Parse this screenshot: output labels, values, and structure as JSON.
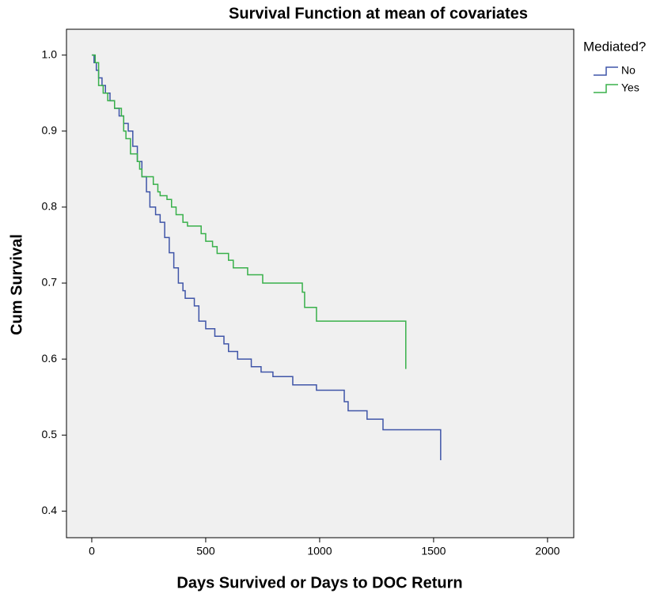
{
  "chart_data": {
    "type": "step",
    "title": "Survival Function at mean of covariates",
    "x_label": "Days Survived or Days to DOC Return",
    "y_label": "Cum Survival",
    "legend_title": "Mediated?",
    "legend_position": "right",
    "xlim": [
      -111,
      2115
    ],
    "xticks": [
      0,
      500,
      1000,
      1500,
      2000
    ],
    "ylim": [
      0.365,
      1.034
    ],
    "yticks": [
      0.4,
      0.5,
      0.6,
      0.7,
      0.8,
      0.9,
      {
        "value": 1,
        "label": "1.0"
      }
    ],
    "series": [
      {
        "name": "No",
        "color": "#3f55a8",
        "x": [
          0,
          10,
          20,
          30,
          45,
          60,
          80,
          100,
          120,
          140,
          160,
          180,
          200,
          220,
          240,
          255,
          280,
          300,
          320,
          340,
          360,
          380,
          400,
          410,
          450,
          470,
          500,
          540,
          580,
          600,
          640,
          700,
          743,
          795,
          882,
          986,
          1108,
          1125,
          1208,
          1278,
          1531
        ],
        "values": [
          1,
          0.99,
          0.98,
          0.97,
          0.96,
          0.95,
          0.94,
          0.93,
          0.92,
          0.91,
          0.9,
          0.88,
          0.86,
          0.84,
          0.82,
          0.8,
          0.79,
          0.78,
          0.76,
          0.74,
          0.72,
          0.7,
          0.69,
          0.68,
          0.67,
          0.65,
          0.64,
          0.63,
          0.62,
          0.61,
          0.6,
          0.59,
          0.583,
          0.577,
          0.566,
          0.559,
          0.544,
          0.532,
          0.521,
          0.507,
          0.467
        ]
      },
      {
        "name": "Yes",
        "color": "#38b04a",
        "x": [
          0,
          15,
          30,
          50,
          70,
          100,
          130,
          140,
          150,
          170,
          200,
          210,
          220,
          270,
          290,
          300,
          330,
          350,
          370,
          400,
          420,
          480,
          500,
          530,
          550,
          600,
          621,
          684,
          750,
          924,
          934,
          986,
          1378
        ],
        "values": [
          1,
          0.99,
          0.96,
          0.95,
          0.94,
          0.93,
          0.92,
          0.9,
          0.89,
          0.87,
          0.86,
          0.85,
          0.84,
          0.83,
          0.82,
          0.815,
          0.81,
          0.8,
          0.79,
          0.78,
          0.775,
          0.765,
          0.755,
          0.748,
          0.739,
          0.73,
          0.72,
          0.711,
          0.7,
          0.688,
          0.668,
          0.65,
          0.587
        ]
      }
    ]
  }
}
